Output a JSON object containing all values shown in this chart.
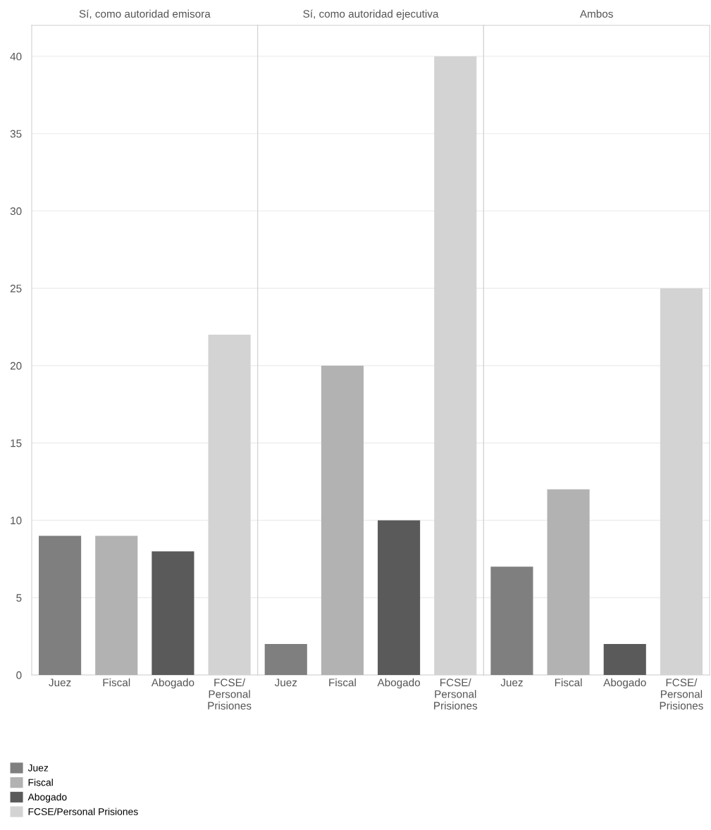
{
  "chart_data": [
    {
      "type": "bar",
      "title": "Sí, como autoridad emisora",
      "categories": [
        "Juez",
        "Fiscal",
        "Abogado",
        "FCSE/\nPersonal\nPrisiones"
      ],
      "ylim": [
        0,
        42
      ],
      "yticks": [
        0,
        5,
        10,
        15,
        20,
        25,
        30,
        35,
        40
      ],
      "grid": "y",
      "legend": "bottom left",
      "series": [
        {
          "name": "Juez",
          "color": "#7f7f7f",
          "values": [
            9,
            null,
            null,
            null
          ]
        },
        {
          "name": "Fiscal",
          "color": "#b2b2b2",
          "values": [
            null,
            9,
            null,
            null
          ]
        },
        {
          "name": "Abogado",
          "color": "#5a5a5a",
          "values": [
            null,
            null,
            8,
            null
          ]
        },
        {
          "name": "FCSE/Personal Prisiones",
          "color": "#d3d3d3",
          "values": [
            null,
            null,
            null,
            22
          ]
        }
      ]
    },
    {
      "type": "bar",
      "title": "Sí, como autoridad ejecutiva",
      "categories": [
        "Juez",
        "Fiscal",
        "Abogado",
        "FCSE/\nPersonal\nPrisiones"
      ],
      "ylim": [
        0,
        42
      ],
      "yticks": [
        0,
        5,
        10,
        15,
        20,
        25,
        30,
        35,
        40
      ],
      "grid": "y",
      "tick_labels": "x",
      "series": [
        {
          "color": "#7f7f7f",
          "values": [
            2,
            null,
            null,
            null
          ]
        },
        {
          "color": "#b2b2b2",
          "values": [
            null,
            20,
            null,
            null
          ]
        },
        {
          "color": "#5a5a5a",
          "values": [
            null,
            null,
            10,
            null
          ]
        },
        {
          "color": "#d3d3d3",
          "values": [
            null,
            null,
            null,
            40
          ]
        }
      ]
    },
    {
      "type": "bar",
      "title": "Ambos",
      "categories": [
        "Juez",
        "Fiscal",
        "Abogado",
        "FCSE/\nPersonal\nPrisiones"
      ],
      "ylim": [
        0,
        42
      ],
      "yticks": [
        0,
        5,
        10,
        15,
        20,
        25,
        30,
        35,
        40
      ],
      "grid": "y",
      "tick_labels": "x",
      "series": [
        {
          "color": "#7f7f7f",
          "values": [
            7,
            null,
            null,
            null
          ]
        },
        {
          "color": "#b2b2b2",
          "values": [
            null,
            12,
            null,
            null
          ]
        },
        {
          "color": "#5a5a5a",
          "values": [
            null,
            null,
            2,
            null
          ]
        },
        {
          "color": "#d3d3d3",
          "values": [
            null,
            null,
            null,
            25
          ]
        }
      ]
    }
  ]
}
